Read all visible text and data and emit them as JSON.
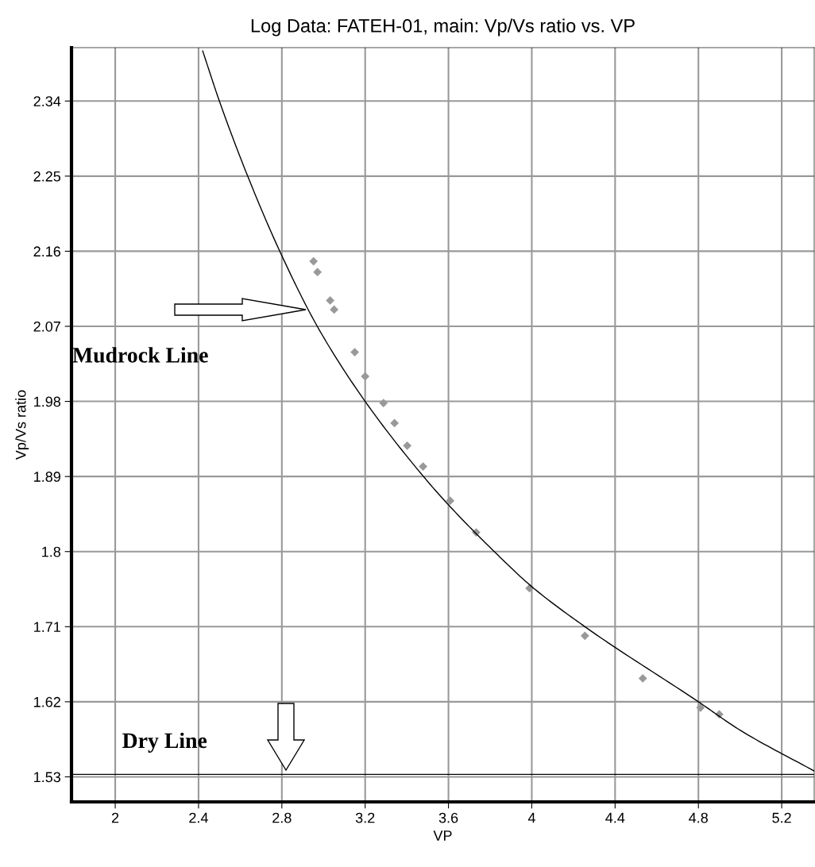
{
  "chart_data": {
    "type": "scatter",
    "title": "Log Data: FATEH-01, main: Vp/Vs ratio vs. VP",
    "xlabel": "VP",
    "ylabel": "Vp/Vs ratio",
    "xlim": [
      1.79,
      5.356
    ],
    "ylim": [
      1.5,
      2.404
    ],
    "xticks": [
      2,
      2.4,
      2.8,
      3.2,
      3.6,
      4,
      4.4,
      4.8,
      5.2
    ],
    "yticks": [
      1.53,
      1.62,
      1.71,
      1.8,
      1.89,
      1.98,
      2.07,
      2.16,
      2.25,
      2.34
    ],
    "grid": true,
    "marker": "diamond",
    "series": [
      {
        "color": "#999999",
        "x": [
          2.952,
          2.971,
          3.032,
          3.051,
          3.15,
          3.2,
          3.288,
          3.341,
          3.402,
          3.478,
          3.608,
          3.733,
          3.989,
          4.255,
          4.533,
          4.81,
          4.9
        ],
        "values": [
          2.148,
          2.135,
          2.101,
          2.09,
          2.039,
          2.01,
          1.978,
          1.954,
          1.927,
          1.902,
          1.861,
          1.823,
          1.756,
          1.699,
          1.648,
          1.613,
          1.605
        ]
      },
      {
        "type": "line",
        "color": "#000000",
        "marker": "none",
        "x": [
          2.42,
          2.5,
          2.636,
          2.79,
          2.97,
          3.2,
          3.48,
          3.6,
          3.82,
          4.0,
          4.255,
          4.8,
          5.0,
          5.356
        ],
        "values": [
          2.4,
          2.34,
          2.25,
          2.16,
          2.07,
          1.98,
          1.89,
          1.856,
          1.8,
          1.758,
          1.71,
          1.62,
          1.586,
          1.537
        ]
      }
    ],
    "ref_lines": [
      {
        "axis": "y",
        "value": 1.533,
        "color": "#000000"
      }
    ],
    "annotations": [
      "Mudrock Line",
      "Dry Line"
    ]
  }
}
